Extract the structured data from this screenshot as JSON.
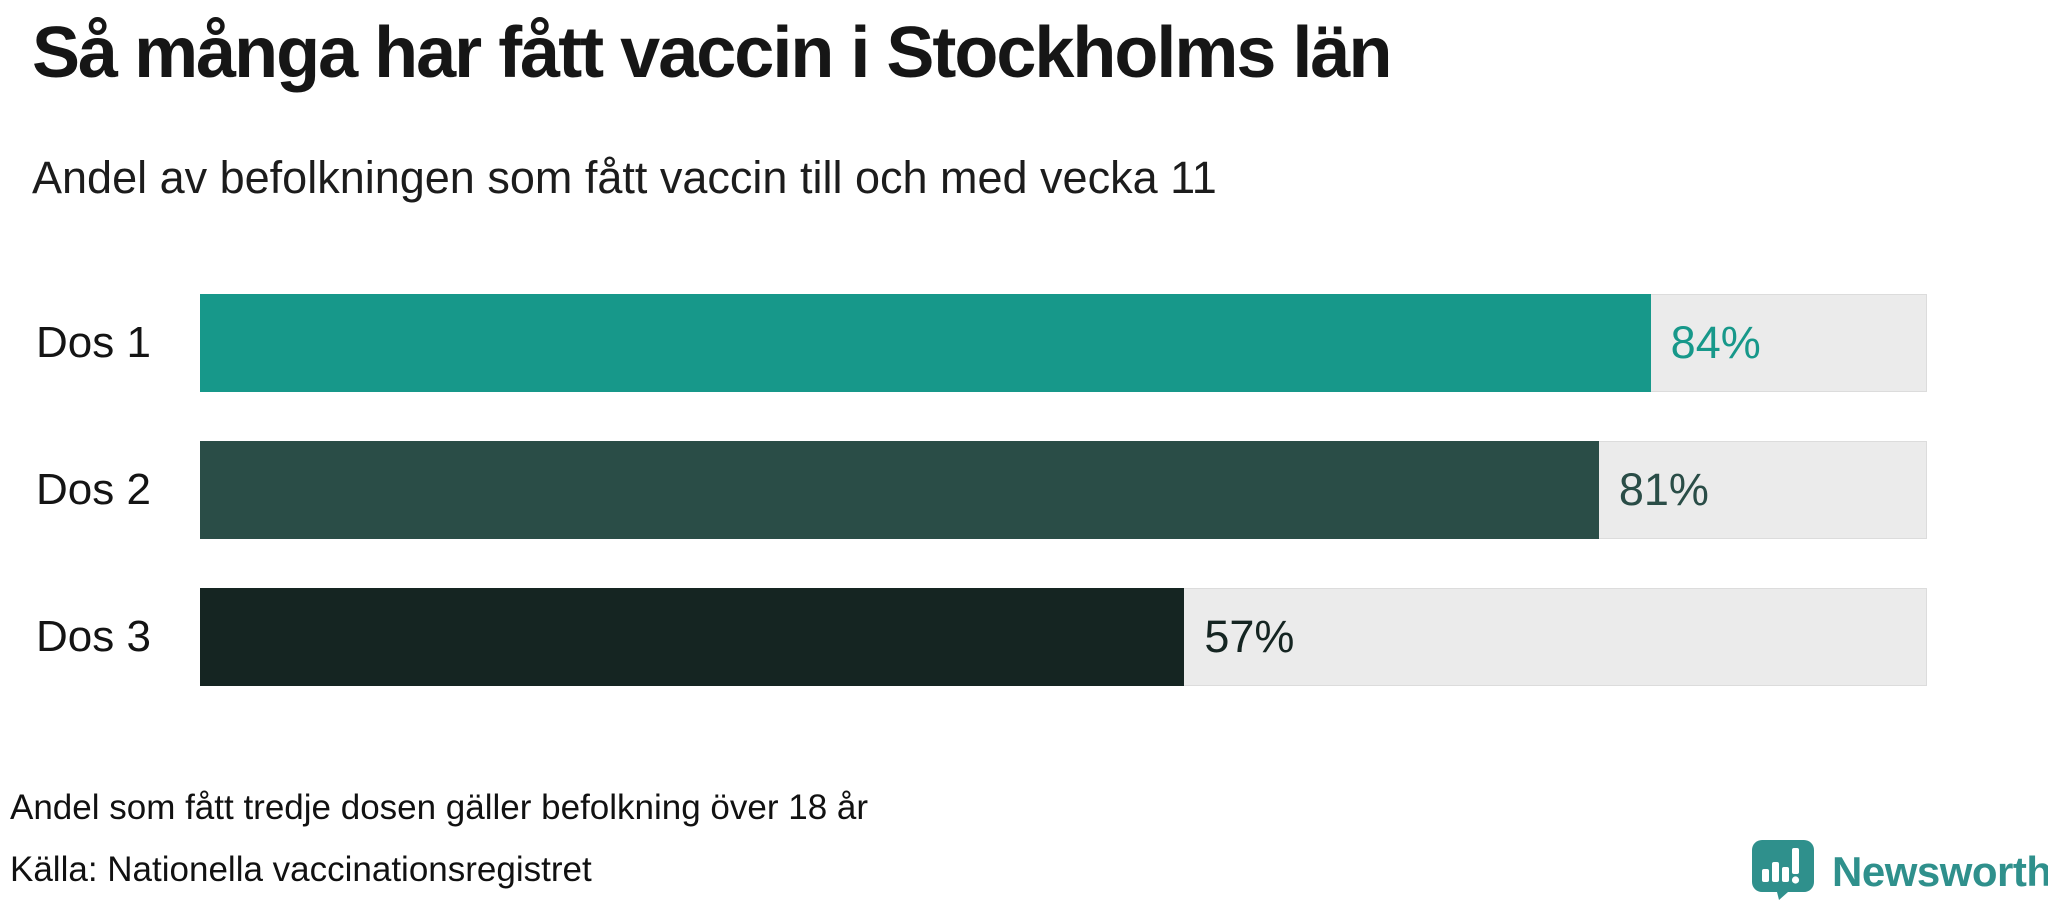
{
  "chart_data": {
    "type": "bar",
    "orientation": "horizontal",
    "title": "Så många har fått vaccin i Stockholms län",
    "subtitle": "Andel av befolkningen som fått vaccin till och med vecka 11",
    "categories": [
      "Dos 1",
      "Dos 2",
      "Dos 3"
    ],
    "values": [
      84,
      81,
      57
    ],
    "value_labels": [
      "84%",
      "81%",
      "57%"
    ],
    "unit": "%",
    "xlim": [
      0,
      100
    ],
    "grid": false,
    "legend": "none",
    "bar_colors": [
      "#17988A",
      "#2A4D47",
      "#152522"
    ],
    "track_color": "#EBEBEB"
  },
  "footer": {
    "note": "Andel som fått tredje dosen gäller befolkning över 18 år",
    "source": "Källa: Nationella vaccinationsregistret",
    "logo_text": "Newsworthy",
    "logo_color": "#2F908C"
  }
}
